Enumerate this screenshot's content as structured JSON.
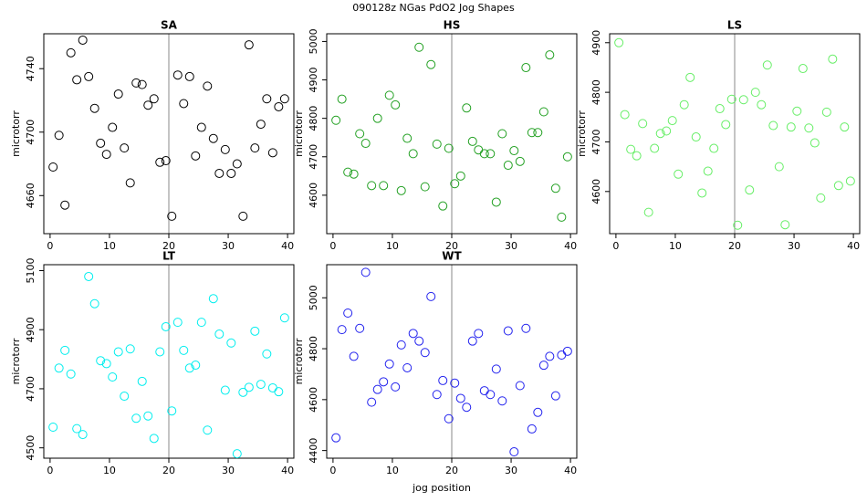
{
  "title": "090128z   NGas PdO2 Jog Shapes",
  "xlabel": "jog position",
  "chart_data": [
    {
      "type": "scatter",
      "title": "SA",
      "ylabel": "microtorr",
      "color": "#000000",
      "vline": 20,
      "xlim": [
        -1.06,
        41.06
      ],
      "ylim": [
        4636,
        4762
      ],
      "xticks": [
        0,
        10,
        20,
        30,
        40
      ],
      "yticks": [
        4660,
        4700,
        4740
      ],
      "x": [
        0.5,
        1.5,
        2.5,
        3.5,
        4.5,
        5.5,
        6.5,
        7.5,
        8.5,
        9.5,
        10.5,
        11.5,
        12.5,
        13.5,
        14.5,
        15.5,
        16.5,
        17.5,
        18.5,
        19.5,
        20.5,
        21.5,
        22.5,
        23.5,
        24.5,
        25.5,
        26.5,
        27.5,
        28.5,
        29.5,
        30.5,
        31.5,
        32.5,
        33.5,
        34.5,
        35.5,
        36.5,
        37.5,
        38.5,
        39.5
      ],
      "values": [
        4678,
        4698,
        4654,
        4750,
        4733,
        4758,
        4735,
        4715,
        4693,
        4686,
        4703,
        4724,
        4690,
        4668,
        4731,
        4730,
        4717,
        4721,
        4681,
        4682,
        4647,
        4736,
        4718,
        4735,
        4685,
        4703,
        4729,
        4696,
        4674,
        4689,
        4674,
        4680,
        4647,
        4755,
        4690,
        4705,
        4721,
        4687,
        4716,
        4721
      ]
    },
    {
      "type": "scatter",
      "title": "HS",
      "ylabel": "microtorr",
      "color": "#22a022",
      "vline": 20,
      "xlim": [
        -1.06,
        41.06
      ],
      "ylim": [
        4500,
        5020
      ],
      "xticks": [
        0,
        10,
        20,
        30,
        40
      ],
      "yticks": [
        4600,
        4700,
        4800,
        4900,
        5000
      ],
      "x": [
        0.5,
        1.5,
        2.5,
        3.5,
        4.5,
        5.5,
        6.5,
        7.5,
        8.5,
        9.5,
        10.5,
        11.5,
        12.5,
        13.5,
        14.5,
        15.5,
        16.5,
        17.5,
        18.5,
        19.5,
        20.5,
        21.5,
        22.5,
        23.5,
        24.5,
        25.5,
        26.5,
        27.5,
        28.5,
        29.5,
        30.5,
        31.5,
        32.5,
        33.5,
        34.5,
        35.5,
        36.5,
        37.5,
        38.5,
        39.5
      ],
      "values": [
        4795,
        4850,
        4660,
        4655,
        4760,
        4735,
        4625,
        4800,
        4625,
        4860,
        4835,
        4612,
        4748,
        4708,
        4985,
        4622,
        4940,
        4733,
        4572,
        4722,
        4630,
        4650,
        4827,
        4740,
        4718,
        4708,
        4708,
        4582,
        4760,
        4678,
        4716,
        4688,
        4932,
        4763,
        4763,
        4817,
        4965,
        4618,
        4543,
        4700
      ]
    },
    {
      "type": "scatter",
      "title": "LS",
      "ylabel": "microtorr",
      "color": "#66ee66",
      "vline": 20,
      "xlim": [
        -1.06,
        41.06
      ],
      "ylim": [
        4515,
        4918
      ],
      "xticks": [
        0,
        10,
        20,
        30,
        40
      ],
      "yticks": [
        4600,
        4700,
        4800,
        4900
      ],
      "x": [
        0.5,
        1.5,
        2.5,
        3.5,
        4.5,
        5.5,
        6.5,
        7.5,
        8.5,
        9.5,
        10.5,
        11.5,
        12.5,
        13.5,
        14.5,
        15.5,
        16.5,
        17.5,
        18.5,
        19.5,
        20.5,
        21.5,
        22.5,
        23.5,
        24.5,
        25.5,
        26.5,
        27.5,
        28.5,
        29.5,
        30.5,
        31.5,
        32.5,
        33.5,
        34.5,
        35.5,
        36.5,
        37.5,
        38.5,
        39.5
      ],
      "values": [
        4900,
        4755,
        4685,
        4672,
        4737,
        4558,
        4687,
        4717,
        4722,
        4743,
        4635,
        4775,
        4830,
        4710,
        4597,
        4641,
        4687,
        4767,
        4735,
        4786,
        4532,
        4785,
        4603,
        4800,
        4775,
        4855,
        4733,
        4650,
        4533,
        4730,
        4762,
        4848,
        4728,
        4698,
        4587,
        4760,
        4867,
        4612,
        4730,
        4621
      ]
    },
    {
      "type": "scatter",
      "title": "LT",
      "ylabel": "microtorr",
      "color": "#00eeee",
      "vline": 20,
      "xlim": [
        -1.06,
        41.06
      ],
      "ylim": [
        4465,
        5120
      ],
      "xticks": [
        0,
        10,
        20,
        30,
        40
      ],
      "yticks": [
        4500,
        4700,
        4900,
        5100
      ],
      "x": [
        0.5,
        1.5,
        2.5,
        3.5,
        4.5,
        5.5,
        6.5,
        7.5,
        8.5,
        9.5,
        10.5,
        11.5,
        12.5,
        13.5,
        14.5,
        15.5,
        16.5,
        17.5,
        18.5,
        19.5,
        20.5,
        21.5,
        22.5,
        23.5,
        24.5,
        25.5,
        26.5,
        27.5,
        28.5,
        29.5,
        30.5,
        31.5,
        32.5,
        33.5,
        34.5,
        35.5,
        36.5,
        37.5,
        38.5,
        39.5
      ],
      "values": [
        4570,
        4770,
        4830,
        4750,
        4565,
        4545,
        5080,
        4988,
        4795,
        4785,
        4740,
        4825,
        4675,
        4835,
        4600,
        4725,
        4608,
        4532,
        4825,
        4910,
        4625,
        4925,
        4830,
        4770,
        4780,
        4925,
        4560,
        5005,
        4885,
        4695,
        4855,
        4480,
        4688,
        4705,
        4895,
        4715,
        4818,
        4703,
        4690,
        4940
      ]
    },
    {
      "type": "scatter",
      "title": "WT",
      "ylabel": "microtorr",
      "color": "#2222ee",
      "vline": 20,
      "xlim": [
        -1.06,
        41.06
      ],
      "ylim": [
        4370,
        5130
      ],
      "xticks": [
        0,
        10,
        20,
        30,
        40
      ],
      "yticks": [
        4400,
        4600,
        4800,
        5000
      ],
      "x": [
        0.5,
        1.5,
        2.5,
        3.5,
        4.5,
        5.5,
        6.5,
        7.5,
        8.5,
        9.5,
        10.5,
        11.5,
        12.5,
        13.5,
        14.5,
        15.5,
        16.5,
        17.5,
        18.5,
        19.5,
        20.5,
        21.5,
        22.5,
        23.5,
        24.5,
        25.5,
        26.5,
        27.5,
        28.5,
        29.5,
        30.5,
        31.5,
        32.5,
        33.5,
        34.5,
        35.5,
        36.5,
        37.5,
        38.5,
        39.5
      ],
      "values": [
        4450,
        4875,
        4940,
        4770,
        4880,
        5100,
        4590,
        4640,
        4670,
        4740,
        4650,
        4815,
        4725,
        4860,
        4830,
        4785,
        5005,
        4620,
        4675,
        4525,
        4665,
        4605,
        4570,
        4830,
        4860,
        4635,
        4620,
        4720,
        4595,
        4870,
        4395,
        4655,
        4880,
        4485,
        4550,
        4735,
        4770,
        4615,
        4775,
        4790
      ]
    }
  ]
}
